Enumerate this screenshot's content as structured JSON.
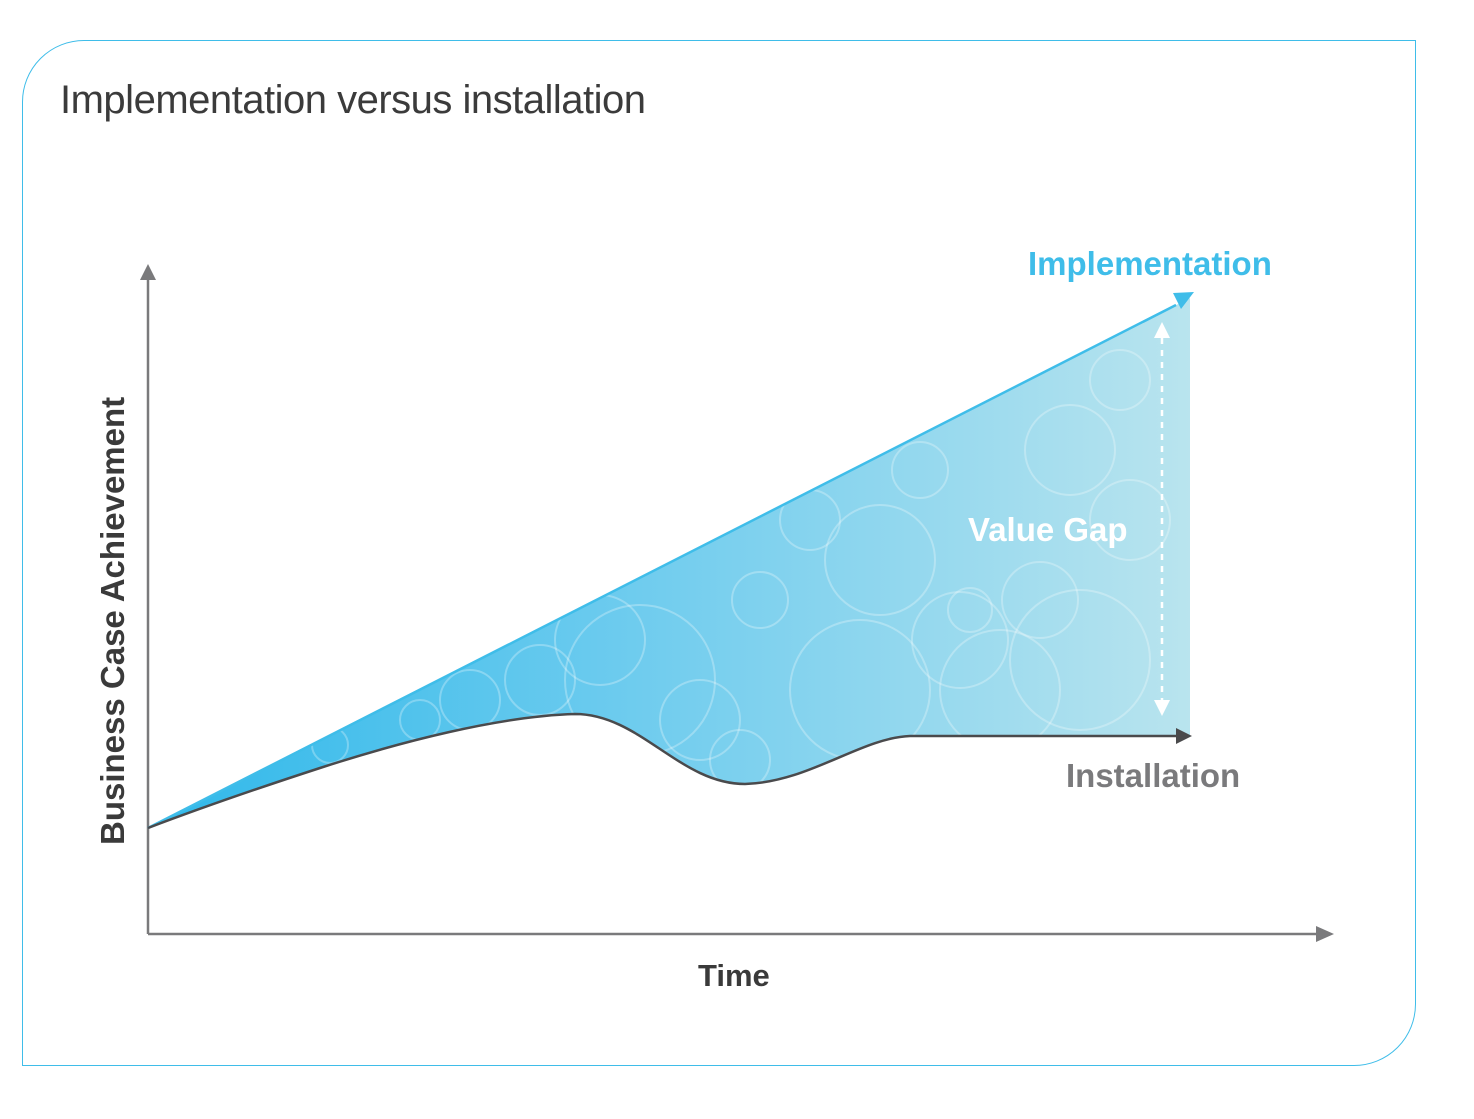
{
  "title": "Implementation versus installation",
  "axes": {
    "y_label": "Business Case Achievement",
    "x_label": "Time"
  },
  "series": {
    "implementation": {
      "label": "Implementation",
      "color": "#3fbde9"
    },
    "installation": {
      "label": "Installation",
      "color": "#7a7a7c"
    }
  },
  "gap": {
    "label": "Value Gap"
  },
  "colors": {
    "axis": "#7a7a7c",
    "frame": "#3fbde9",
    "title": "#3b3b3b",
    "axis_label": "#3a3a3a",
    "installation_line": "#4a4a4c"
  }
}
